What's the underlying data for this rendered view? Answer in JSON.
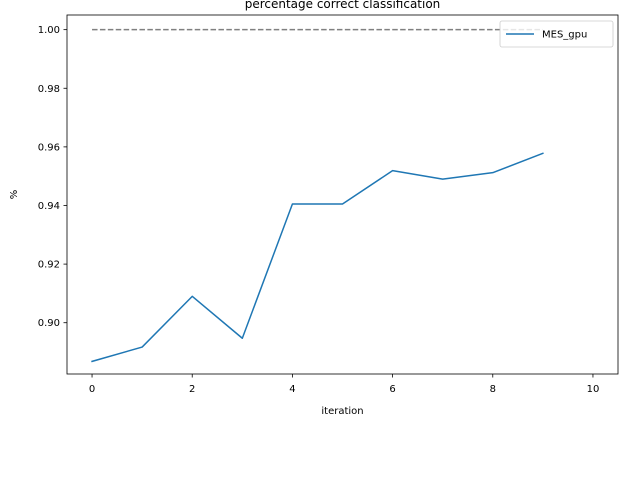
{
  "chart_data": {
    "type": "line",
    "title": "percentage correct classification",
    "xlabel": "iteration",
    "ylabel": "%",
    "xlim": [
      -0.5,
      10.5
    ],
    "ylim": [
      0.8825,
      1.005
    ],
    "xticks": [
      0,
      2,
      4,
      6,
      8,
      10
    ],
    "yticks": [
      0.9,
      0.92,
      0.94,
      0.96,
      0.98,
      1.0
    ],
    "ytick_labels": [
      "0.90",
      "0.92",
      "0.94",
      "0.96",
      "0.98",
      "1.00"
    ],
    "grid": false,
    "legend": {
      "location": "upper right",
      "entries": [
        "MES_gpu"
      ]
    },
    "series": [
      {
        "name": "MES_gpu",
        "color": "#1f77b4",
        "style": "solid",
        "x": [
          0,
          1,
          2,
          3,
          4,
          5,
          6,
          7,
          8,
          9
        ],
        "y": [
          0.8868,
          0.8917,
          0.909,
          0.8947,
          0.9405,
          0.9405,
          0.9519,
          0.949,
          0.9512,
          0.9578
        ]
      }
    ],
    "reference_lines": [
      {
        "color": "#808080",
        "style": "dashed",
        "x": [
          0,
          9
        ],
        "y": [
          1.0,
          1.0
        ]
      }
    ]
  }
}
